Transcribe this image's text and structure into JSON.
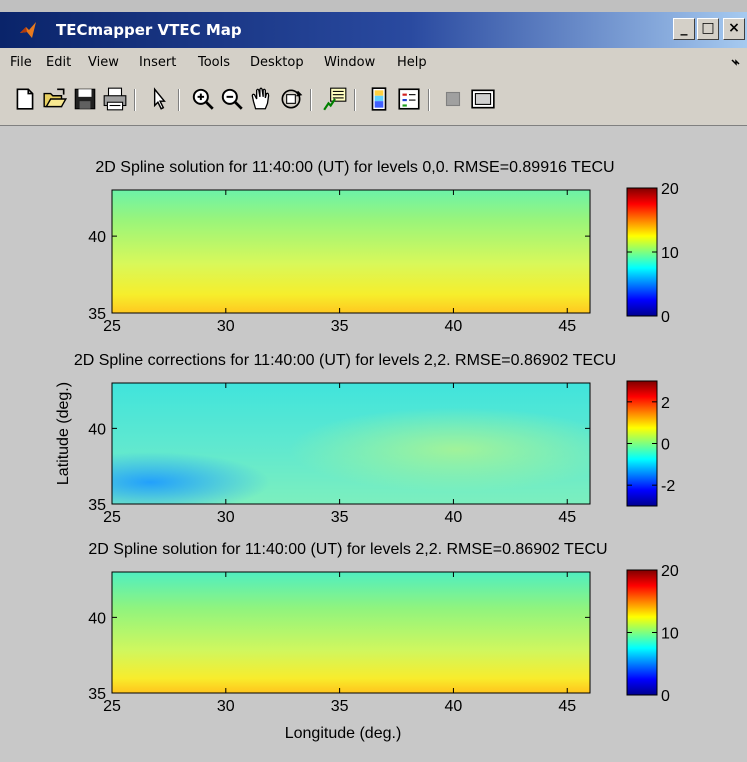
{
  "window": {
    "title": "TECmapper VTEC Map",
    "controls": {
      "minimize": "_",
      "maximize": "□",
      "close": "×"
    }
  },
  "menu": {
    "items": [
      "File",
      "Edit",
      "View",
      "Insert",
      "Tools",
      "Desktop",
      "Window",
      "Help"
    ],
    "overflow_icon": "menu-arrow-icon"
  },
  "toolbar": {
    "buttons": [
      "new-figure-icon",
      "open-file-icon",
      "save-icon",
      "print-icon",
      "edit-plot-arrow-icon",
      "zoom-in-icon",
      "zoom-out-icon",
      "pan-hand-icon",
      "rotate-3d-icon",
      "data-cursor-icon",
      "insert-colorbar-icon",
      "insert-legend-icon",
      "hide-plot-tools-icon",
      "show-plot-tools-icon"
    ]
  },
  "colors": {
    "titlebar_start": "#0a246a",
    "titlebar_end": "#a6caf0",
    "figure_bg": "#c8c8c8",
    "window_bg": "#c0c0c0"
  },
  "chart_data": [
    {
      "type": "heatmap",
      "title": "2D Spline solution for 11:40:00 (UT) for levels 0,0. RMSE=0.89916 TECU",
      "xlim": [
        25,
        46
      ],
      "ylim": [
        35,
        43
      ],
      "xticks": [
        25,
        30,
        35,
        40,
        45
      ],
      "yticks": [
        35,
        40
      ],
      "xlabel": "",
      "ylabel": "",
      "colormap": "jet",
      "clim": [
        0,
        20
      ],
      "colorbar_ticks": [
        0,
        10,
        20
      ],
      "values_summary": {
        "north": 9.5,
        "south": 13,
        "unit": "TECU"
      }
    },
    {
      "type": "heatmap",
      "title": "2D Spline corrections for 11:40:00 (UT) for levels 2,2. RMSE=0.86902 TECU",
      "xlim": [
        25,
        46
      ],
      "ylim": [
        35,
        43
      ],
      "xticks": [
        25,
        30,
        35,
        40,
        45
      ],
      "yticks": [
        35,
        40
      ],
      "xlabel": "",
      "ylabel": "Latitude (deg.)",
      "colormap": "jet",
      "clim": [
        -3,
        3
      ],
      "colorbar_ticks": [
        -2,
        0,
        2
      ],
      "values_summary": {
        "min": -1.8,
        "typical": -0.3,
        "unit": "TECU"
      }
    },
    {
      "type": "heatmap",
      "title": "2D Spline solution for 11:40:00 (UT) for levels 2,2. RMSE=0.86902 TECU",
      "xlim": [
        25,
        46
      ],
      "ylim": [
        35,
        43
      ],
      "xticks": [
        25,
        30,
        35,
        40,
        45
      ],
      "yticks": [
        35,
        40
      ],
      "xlabel": "Longitude (deg.)",
      "ylabel": "",
      "colormap": "jet",
      "clim": [
        0,
        20
      ],
      "colorbar_ticks": [
        0,
        10,
        20
      ],
      "values_summary": {
        "north": 9.2,
        "south": 13.5,
        "unit": "TECU"
      }
    }
  ]
}
